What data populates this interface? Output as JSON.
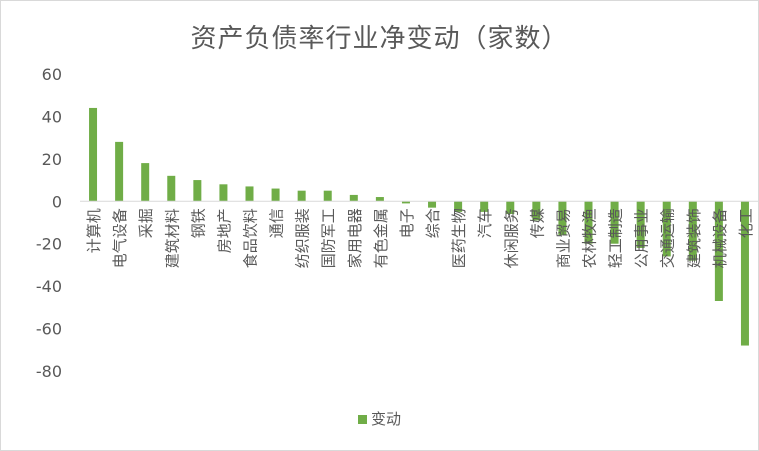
{
  "chart_data": {
    "type": "bar",
    "title": "资产负债率行业净变动（家数）",
    "xlabel": "",
    "ylabel": "",
    "ylim": [
      -80,
      60
    ],
    "yticks": [
      60,
      40,
      20,
      0,
      -20,
      -40,
      -60,
      -80
    ],
    "grid": false,
    "legend_position": "bottom",
    "bar_color": "#70ad47",
    "categories": [
      "计算机",
      "电气设备",
      "采掘",
      "建筑材料",
      "钢铁",
      "房地产",
      "食品饮料",
      "通信",
      "纺织服装",
      "国防军工",
      "家用电器",
      "有色金属",
      "电子",
      "综合",
      "医药生物",
      "汽车",
      "休闲服务",
      "传媒",
      "商业贸易",
      "农林牧渔",
      "轻工制造",
      "公用事业",
      "交通运输",
      "建筑装饰",
      "机械设备",
      "化工"
    ],
    "series": [
      {
        "name": "变动",
        "values": [
          44,
          28,
          18,
          12,
          10,
          8,
          7,
          6,
          5,
          5,
          3,
          2,
          -1,
          -3,
          -5,
          -5,
          -6,
          -9,
          -16,
          -20,
          -20,
          -22,
          -26,
          -28,
          -47,
          -68
        ]
      }
    ]
  }
}
